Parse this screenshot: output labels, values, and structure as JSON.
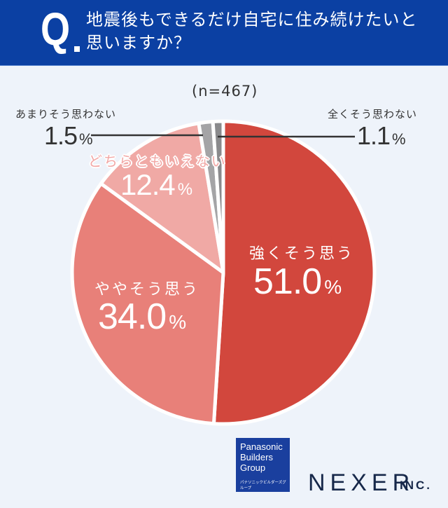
{
  "header": {
    "q_mark": "Q",
    "question_line1": "地震後もできるだけ自宅に住み続けたいと",
    "question_line2": "思いますか？",
    "background_color": "#0b40a3"
  },
  "sample_size": "(n=467)",
  "chart_data": {
    "type": "pie",
    "title": "地震後もできるだけ自宅に住み続けたいと思いますか？",
    "sample_size": 467,
    "start_angle_deg": 0,
    "direction": "clockwise",
    "categories": [
      "強くそう思う",
      "ややそう思う",
      "どちらともいえない",
      "あまりそう思わない",
      "全くそう思わない"
    ],
    "values": [
      51.0,
      34.0,
      12.4,
      1.5,
      1.1
    ],
    "unit": "%",
    "colors": [
      "#d2473d",
      "#e88079",
      "#f0a9a5",
      "#a4a4a6",
      "#8a8a8c"
    ]
  },
  "labels": {
    "strongly_agree": {
      "label": "強くそう思う",
      "value": "51.0",
      "unit": "%"
    },
    "somewhat_agree": {
      "label": "ややそう思う",
      "value": "34.0",
      "unit": "%"
    },
    "neutral": {
      "label": "どちらともいえない",
      "value": "12.4",
      "unit": "%"
    },
    "somewhat_disagree": {
      "label": "あまりそう思わない",
      "value": "1.5",
      "unit": "%"
    },
    "strongly_disagree": {
      "label": "全くそう思わない",
      "value": "1.1",
      "unit": "%"
    }
  },
  "footer": {
    "pbg_line1": "Panasonic",
    "pbg_line2": "Builders",
    "pbg_line3": "Group",
    "pbg_line4": "パナソニックビルダーズグループ",
    "nexer": "NEXER",
    "nexer_inc": "INC."
  }
}
